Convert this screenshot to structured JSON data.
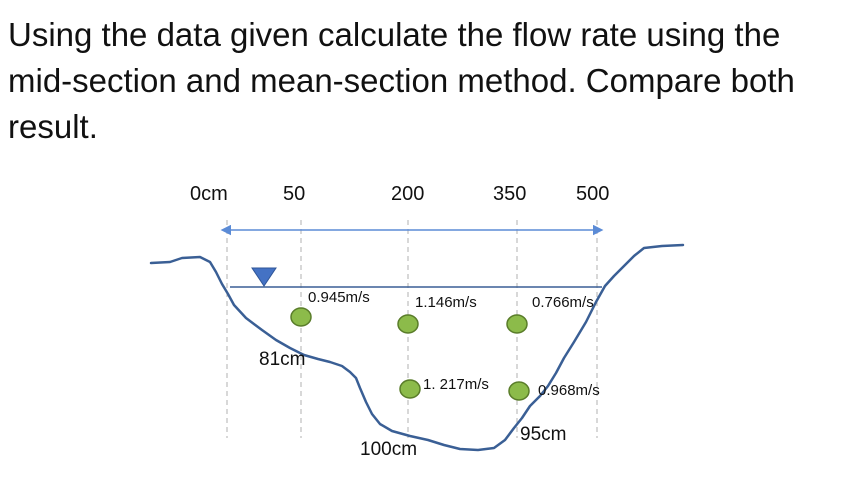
{
  "question": "Using the data given calculate the flow rate using the mid-section and mean-section method. Compare both result.",
  "stations": [
    "0cm",
    "50",
    "200",
    "350",
    "500"
  ],
  "velocities": [
    "0.945m/s",
    "1.146m/s",
    "0.766m/s",
    "1. 217m/s",
    "0.968m/s"
  ],
  "depths": [
    "81cm",
    "100cm",
    "95cm"
  ],
  "colors": {
    "riverbed": "#3a5f95",
    "water_line": "#3a5f95",
    "current_meter_fill": "#8cbb4a",
    "current_meter_stroke": "#5a7d2a",
    "water_marker": "#4472c4",
    "dimension_arrow": "#5b8bd6",
    "guide_lines": "#b0b0b0"
  },
  "icons": {
    "water_level": "triangle-down-icon",
    "current_meter": "circle-icon"
  }
}
